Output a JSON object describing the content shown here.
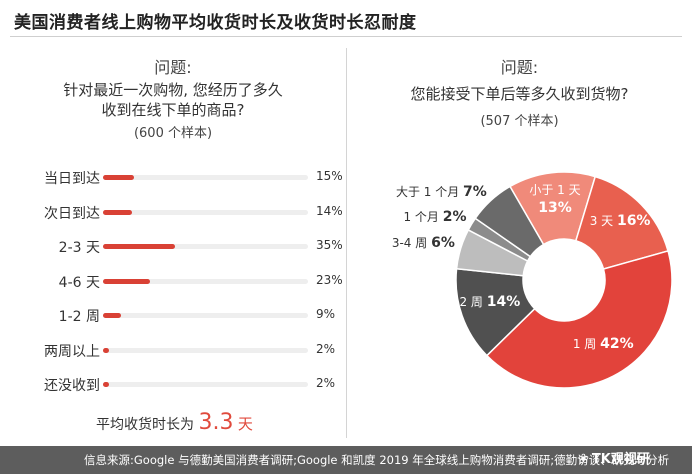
{
  "header": {
    "title": "美国消费者线上购物平均收货时长及收货时长忍耐度"
  },
  "chart_data": [
    {
      "type": "bar",
      "panel_label": "问题:",
      "question_lines": [
        "针对最近一次购物, 您经历了多久",
        "收到在线下单的商品?"
      ],
      "sample": "(600 个样本)",
      "categories": [
        "当日到达",
        "次日到达",
        "2-3 天",
        "4-6 天",
        "1-2 周",
        "两周以上",
        "还没收到"
      ],
      "values": [
        15,
        14,
        35,
        23,
        9,
        2,
        2
      ],
      "value_labels": [
        "15%",
        "14%",
        "35%",
        "23%",
        "9%",
        "2%",
        "2%"
      ],
      "xlim": [
        0,
        100
      ],
      "bar_color": "#d94135",
      "track_color": "#eeeeee",
      "summary": {
        "text": "平均收货时长为",
        "value": "3.3",
        "unit": "天"
      }
    },
    {
      "type": "pie",
      "panel_label": "问题:",
      "question_lines": [
        "您能接受下单后等多久收到货物?"
      ],
      "sample": "(507 个样本)",
      "slices": [
        {
          "label": "小于 1 天",
          "pct": 13,
          "pct_label": "13%",
          "color": "#f08a7a"
        },
        {
          "label": "3 天",
          "pct": 16,
          "pct_label": "16%",
          "color": "#e8604f"
        },
        {
          "label": "1 周",
          "pct": 42,
          "pct_label": "42%",
          "color": "#e2433b"
        },
        {
          "label": "2 周",
          "pct": 14,
          "pct_label": "14%",
          "color": "#505050"
        },
        {
          "label": "3-4 周",
          "pct": 6,
          "pct_label": "6%",
          "color": "#bdbdbd"
        },
        {
          "label": "1 个月",
          "pct": 2,
          "pct_label": "2%",
          "color": "#8c8c8c"
        },
        {
          "label": "大于 1 个月",
          "pct": 7,
          "pct_label": "7%",
          "color": "#6a6a6a"
        }
      ]
    }
  ],
  "footer": {
    "source": "信息来源:Google 与德勤美国消费者调研;Google 和凯度 2019 年全球线上购物消费者调研;德勤访谈、研究与分析",
    "brand": "TK观视研",
    "wechat_icon": "wechat-icon"
  }
}
